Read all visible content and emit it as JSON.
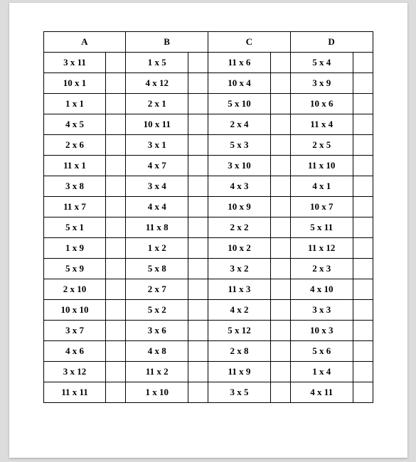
{
  "table": {
    "type": "table",
    "background_color": "#ffffff",
    "border_color": "#000000",
    "font_family": "Times New Roman",
    "header_font_weight": "bold",
    "cell_font_weight": "bold",
    "font_size_pt": 10,
    "columns": [
      "A",
      "B",
      "C",
      "D"
    ],
    "rows": [
      [
        "3 x 11",
        "1 x 5",
        "11 x 6",
        "5 x 4"
      ],
      [
        "10 x 1",
        "4 x 12",
        "10 x 4",
        "3 x 9"
      ],
      [
        "1 x 1",
        "2 x 1",
        "5 x 10",
        "10 x 6"
      ],
      [
        "4 x 5",
        "10 x 11",
        "2 x 4",
        "11 x 4"
      ],
      [
        "2 x 6",
        "3 x 1",
        "5 x 3",
        "2 x 5"
      ],
      [
        "11 x 1",
        "4 x 7",
        "3 x 10",
        "11 x 10"
      ],
      [
        "3 x 8",
        "3 x 4",
        "4 x 3",
        "4 x 1"
      ],
      [
        "11 x 7",
        "4 x 4",
        "10 x 9",
        "10 x 7"
      ],
      [
        "5 x 1",
        "11 x 8",
        "2 x 2",
        "5 x 11"
      ],
      [
        "1 x 9",
        "1 x 2",
        "10 x 2",
        "11 x 12"
      ],
      [
        "5 x 9",
        "5 x 8",
        "3 x 2",
        "2 x 3"
      ],
      [
        "2 x 10",
        "2 x 7",
        "11 x 3",
        "4 x 10"
      ],
      [
        "10 x 10",
        "5 x 2",
        "4 x 2",
        "3 x 3"
      ],
      [
        "3 x 7",
        "3 x 6",
        "5 x 12",
        "10 x 3"
      ],
      [
        "4 x 6",
        "4 x 8",
        "2 x 8",
        "5 x 6"
      ],
      [
        "3 x 12",
        "11 x 2",
        "11 x 9",
        "1 x 4"
      ],
      [
        "11 x 11",
        "1 x 10",
        "3 x 5",
        "4 x 11"
      ]
    ]
  }
}
